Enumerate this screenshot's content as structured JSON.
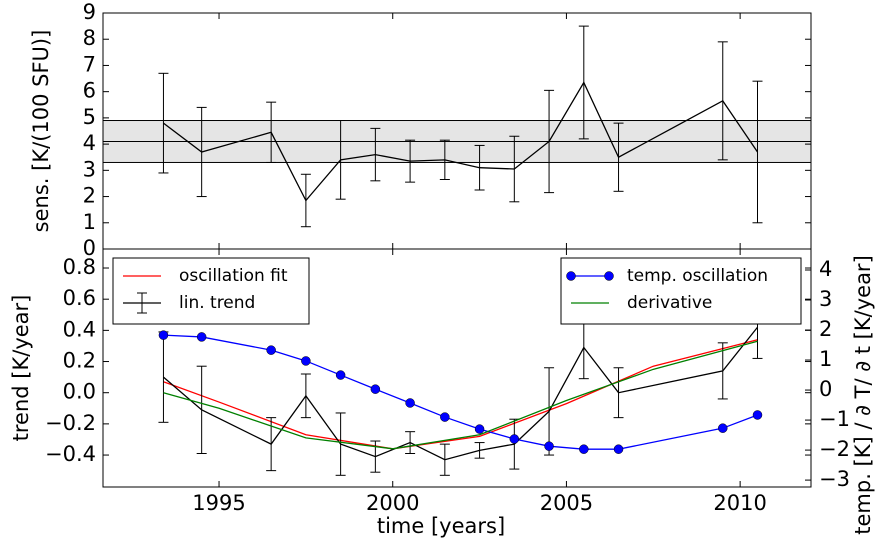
{
  "chart_data": [
    {
      "type": "errorbar",
      "ylabel": "sens. [K/(100 SFU)]",
      "xlim": [
        1991.66,
        2012.04
      ],
      "xticks": [
        1995,
        2000,
        2005,
        2010
      ],
      "ylim": [
        0,
        9
      ],
      "yticks": [
        0,
        1,
        2,
        3,
        4,
        5,
        6,
        7,
        8,
        9
      ],
      "band": {
        "lower": 3.3,
        "center": 4.1,
        "upper": 4.9,
        "color": "#e5e5e5"
      },
      "series": [
        {
          "color": "#000000",
          "x": [
            1993.4,
            1994.5,
            1996.5,
            1997.5,
            1998.5,
            1999.5,
            2000.5,
            2001.5,
            2002.5,
            2003.5,
            2004.5,
            2005.5,
            2006.5,
            2009.5,
            2010.5
          ],
          "values": [
            4.8,
            3.7,
            4.45,
            1.85,
            3.4,
            3.6,
            3.35,
            3.4,
            3.1,
            3.05,
            4.1,
            6.35,
            3.5,
            5.65,
            3.7
          ],
          "errors": [
            1.9,
            1.7,
            1.15,
            1.0,
            1.5,
            1.0,
            0.8,
            0.75,
            0.85,
            1.25,
            1.95,
            2.15,
            1.3,
            2.25,
            2.7
          ]
        }
      ]
    },
    {
      "type": "errorbar",
      "xlabel": "time [years]",
      "ylabel": "trend [K/year]",
      "y2label": "temp. [K] / ∂ T/ ∂ t [K/year]",
      "xlim": [
        1991.66,
        2012.04
      ],
      "xticks": [
        1995,
        2000,
        2005,
        2010
      ],
      "ylim": [
        -0.605,
        0.922
      ],
      "yticks": [
        {
          "value": -0.4,
          "label": "−0.4"
        },
        {
          "value": -0.2,
          "label": "−0.2"
        },
        {
          "value": 0,
          "label": "0.0"
        },
        0.2,
        0.4,
        0.6,
        0.8
      ],
      "y2lim": [
        -3.23,
        4.7
      ],
      "y2ticks": [
        {
          "value": -3,
          "label": "−3"
        },
        {
          "value": -2,
          "label": "−2"
        },
        {
          "value": -1,
          "label": "−1"
        },
        0,
        1,
        2,
        3,
        4
      ],
      "y2color": "#0000ff",
      "series": [
        {
          "name": "oscillation fit",
          "color": "#ff0000",
          "legend": "upper left",
          "x": [
            1993.4,
            1995,
            1997.5,
            2000,
            2002.5,
            2005,
            2007.5,
            2010.5
          ],
          "values": [
            0.07,
            -0.06,
            -0.27,
            -0.36,
            -0.28,
            -0.07,
            0.17,
            0.34
          ]
        },
        {
          "name": "lin. trend",
          "color": "#000000",
          "legend": "upper left",
          "x": [
            1993.4,
            1994.5,
            1996.5,
            1997.5,
            1998.5,
            1999.5,
            2000.5,
            2001.5,
            2002.5,
            2003.5,
            2004.5,
            2005.5,
            2006.5,
            2009.5,
            2010.5
          ],
          "values": [
            0.1,
            -0.11,
            -0.33,
            -0.02,
            -0.33,
            -0.41,
            -0.32,
            -0.43,
            -0.37,
            -0.33,
            -0.12,
            0.29,
            0.0,
            0.14,
            0.42
          ],
          "errors": [
            0.29,
            0.28,
            0.17,
            0.14,
            0.2,
            0.1,
            0.07,
            0.1,
            0.05,
            0.16,
            0.28,
            0.2,
            0.16,
            0.18,
            0.2
          ]
        },
        {
          "name": "temp. oscillation",
          "color": "#0000ff",
          "legend": "upper right",
          "axis": "y2",
          "marker": "o",
          "x": [
            1993.4,
            1994.5,
            1996.5,
            1997.5,
            1998.5,
            1999.5,
            2000.5,
            2001.5,
            2002.5,
            2003.5,
            2004.5,
            2005.5,
            2006.5,
            2009.5,
            2010.5
          ],
          "values": [
            1.83,
            1.77,
            1.33,
            0.97,
            0.5,
            0.03,
            -0.43,
            -0.9,
            -1.3,
            -1.63,
            -1.87,
            -1.97,
            -1.97,
            -1.27,
            -0.83
          ]
        },
        {
          "name": "derivative",
          "color": "#008000",
          "legend": "upper right",
          "x": [
            1993.4,
            1995,
            1997.5,
            2000,
            2002.5,
            2005,
            2007.5,
            2010.5
          ],
          "values": [
            0.0,
            -0.1,
            -0.29,
            -0.36,
            -0.27,
            -0.05,
            0.15,
            0.33
          ]
        }
      ]
    }
  ]
}
